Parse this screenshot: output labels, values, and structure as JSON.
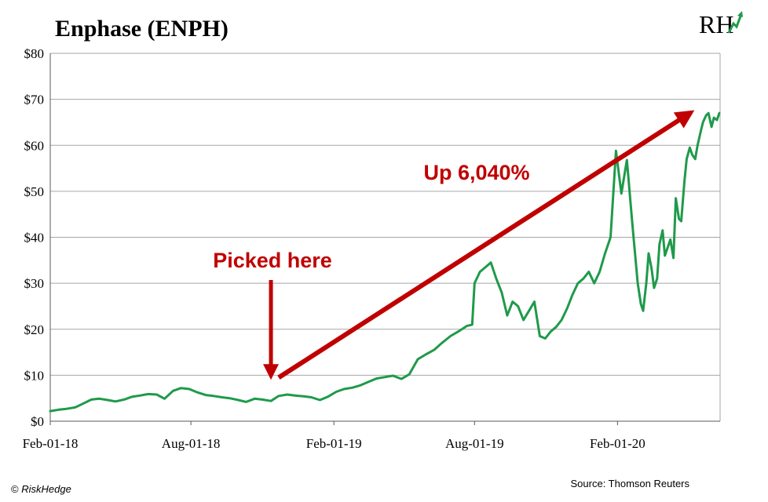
{
  "title": "Enphase (ENPH)",
  "logo_text": "RH",
  "source": "Source: Thomson Reuters",
  "copyright_symbol": "©",
  "copyright_brand": "RiskHedge",
  "colors": {
    "line": "#1f9a4a",
    "annotation": "#c00000",
    "grid": "#a6a6a6"
  },
  "chart_data": {
    "type": "line",
    "title": "Enphase (ENPH)",
    "xlabel": "",
    "ylabel": "",
    "ylim": [
      0,
      80
    ],
    "y_ticks": [
      0,
      10,
      20,
      30,
      40,
      50,
      60,
      70,
      80
    ],
    "y_tick_labels": [
      "$0",
      "$10",
      "$20",
      "$30",
      "$40",
      "$50",
      "$60",
      "$70",
      "$80"
    ],
    "x_tick_dates": [
      "2018-02-01",
      "2018-08-01",
      "2019-02-01",
      "2019-08-01",
      "2020-02-01"
    ],
    "x_tick_labels": [
      "Feb-01-18",
      "Aug-01-18",
      "Feb-01-19",
      "Aug-01-19",
      "Feb-01-20"
    ],
    "xlim": [
      "2018-02-01",
      "2020-06-12"
    ],
    "grid": true,
    "series": [
      {
        "x": [
          "2018-02-01",
          "2018-02-12",
          "2018-02-22",
          "2018-03-05",
          "2018-03-15",
          "2018-03-26",
          "2018-04-05",
          "2018-04-16",
          "2018-04-26",
          "2018-05-07",
          "2018-05-17",
          "2018-05-28",
          "2018-06-07",
          "2018-06-18",
          "2018-06-28",
          "2018-07-09",
          "2018-07-19",
          "2018-07-30",
          "2018-08-09",
          "2018-08-20",
          "2018-08-30",
          "2018-09-10",
          "2018-09-20",
          "2018-10-01",
          "2018-10-11",
          "2018-10-22",
          "2018-11-01",
          "2018-11-12",
          "2018-11-22",
          "2018-12-03",
          "2018-12-13",
          "2018-12-24",
          "2019-01-03",
          "2019-01-14",
          "2019-01-24",
          "2019-02-04",
          "2019-02-14",
          "2019-02-25",
          "2019-03-07",
          "2019-03-18",
          "2019-03-28",
          "2019-04-08",
          "2019-04-18",
          "2019-04-29",
          "2019-05-09",
          "2019-05-20",
          "2019-05-30",
          "2019-06-10",
          "2019-06-20",
          "2019-07-01",
          "2019-07-11",
          "2019-07-22",
          "2019-07-29",
          "2019-08-01",
          "2019-08-08",
          "2019-08-15",
          "2019-08-22",
          "2019-08-29",
          "2019-09-05",
          "2019-09-12",
          "2019-09-19",
          "2019-09-26",
          "2019-10-03",
          "2019-10-10",
          "2019-10-17",
          "2019-10-24",
          "2019-10-31",
          "2019-11-07",
          "2019-11-14",
          "2019-11-21",
          "2019-11-28",
          "2019-12-05",
          "2019-12-12",
          "2019-12-19",
          "2019-12-26",
          "2020-01-02",
          "2020-01-09",
          "2020-01-16",
          "2020-01-23",
          "2020-01-30",
          "2020-02-06",
          "2020-02-13",
          "2020-02-20",
          "2020-02-27",
          "2020-03-02",
          "2020-03-05",
          "2020-03-09",
          "2020-03-12",
          "2020-03-16",
          "2020-03-19",
          "2020-03-23",
          "2020-03-26",
          "2020-03-30",
          "2020-04-02",
          "2020-04-06",
          "2020-04-09",
          "2020-04-13",
          "2020-04-16",
          "2020-04-20",
          "2020-04-23",
          "2020-04-27",
          "2020-04-30",
          "2020-05-04",
          "2020-05-07",
          "2020-05-11",
          "2020-05-14",
          "2020-05-18",
          "2020-05-21",
          "2020-05-25",
          "2020-05-28",
          "2020-06-01",
          "2020-06-04",
          "2020-06-08",
          "2020-06-11"
        ],
        "y": [
          2.2,
          2.5,
          2.7,
          3.0,
          3.8,
          4.7,
          4.9,
          4.6,
          4.3,
          4.7,
          5.3,
          5.6,
          5.9,
          5.8,
          4.9,
          6.6,
          7.2,
          7.0,
          6.3,
          5.7,
          5.5,
          5.2,
          5.0,
          4.6,
          4.2,
          4.9,
          4.7,
          4.4,
          5.5,
          5.8,
          5.6,
          5.4,
          5.2,
          4.6,
          5.3,
          6.4,
          7.0,
          7.3,
          7.8,
          8.6,
          9.3,
          9.6,
          9.9,
          9.2,
          10.2,
          13.5,
          14.5,
          15.5,
          17.0,
          18.5,
          19.5,
          20.7,
          21.0,
          30.0,
          32.5,
          33.5,
          34.5,
          31.0,
          28.0,
          23.0,
          26.0,
          25.0,
          22.0,
          24.0,
          26.0,
          18.5,
          18.0,
          19.5,
          20.5,
          22.0,
          24.5,
          27.5,
          30.0,
          31.0,
          32.5,
          30.0,
          32.5,
          36.5,
          40.0,
          58.8,
          49.5,
          56.8,
          43.0,
          30.0,
          25.5,
          24.0,
          30.0,
          36.5,
          33.0,
          29.0,
          31.0,
          38.5,
          41.5,
          36.0,
          38.0,
          39.5,
          35.5,
          48.5,
          44.0,
          43.5,
          52.0,
          57.0,
          59.5,
          58.0,
          57.0,
          60.0,
          63.0,
          65.0,
          66.5,
          67.0,
          64.0,
          66.0,
          65.5,
          67.0
        ]
      }
    ],
    "annotations": [
      {
        "text": "Picked here",
        "date": "2018-11-12",
        "value": 9.0
      },
      {
        "text": "Up 6,040%",
        "from_date": "2018-11-22",
        "from_value": 9.5,
        "to_date": "2020-05-14",
        "to_value": 68.0
      }
    ]
  }
}
